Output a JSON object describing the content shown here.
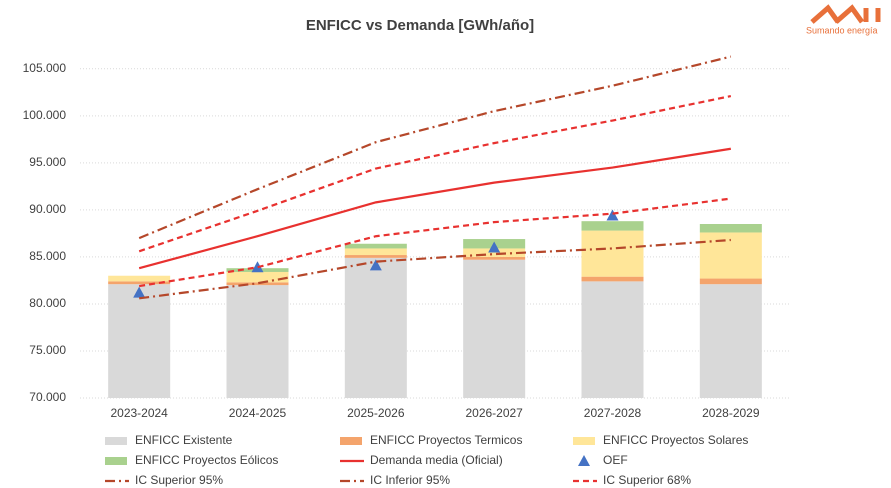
{
  "chart_data": {
    "type": "bar",
    "title": "ENFICC vs Demanda [GWh/año]",
    "logo_text": "Sumando energía",
    "categories": [
      "2023-2024",
      "2024-2025",
      "2025-2026",
      "2026-2027",
      "2027-2028",
      "2028-2029"
    ],
    "ylim": [
      70000,
      107000
    ],
    "yticks": [
      {
        "value": 70000,
        "label": "70.000"
      },
      {
        "value": 75000,
        "label": "75.000"
      },
      {
        "value": 80000,
        "label": "80.000"
      },
      {
        "value": 85000,
        "label": "85.000"
      },
      {
        "value": 90000,
        "label": "90.000"
      },
      {
        "value": 95000,
        "label": "95.000"
      },
      {
        "value": 100000,
        "label": "100.000"
      },
      {
        "value": 105000,
        "label": "105.000"
      }
    ],
    "grid": true,
    "series": [
      {
        "name": "ENFICC Existente",
        "kind": "bar",
        "color": "#d9d9d9",
        "values": [
          82100,
          82000,
          84900,
          84700,
          82400,
          82100
        ]
      },
      {
        "name": "ENFICC Proyectos Termicos",
        "kind": "bar",
        "color": "#f4a46c",
        "values": [
          300,
          300,
          300,
          300,
          500,
          600
        ]
      },
      {
        "name": "ENFICC Proyectos Solares",
        "kind": "bar",
        "color": "#ffe699",
        "values": [
          600,
          1100,
          700,
          900,
          4900,
          4900
        ]
      },
      {
        "name": "ENFICC Proyectos Eólicos",
        "kind": "bar",
        "color": "#a9d18e",
        "values": [
          0,
          400,
          500,
          1000,
          1000,
          900
        ]
      },
      {
        "name": "Demanda media (Oficial)",
        "kind": "line",
        "dash": "solid",
        "color": "#e8312f",
        "values": [
          83800,
          87200,
          90800,
          92900,
          94500,
          96500
        ]
      },
      {
        "name": "OEF",
        "kind": "marker",
        "color": "#4472c4",
        "values": [
          81200,
          83900,
          84100,
          86000,
          89400,
          null
        ]
      },
      {
        "name": "IC Superior 95%",
        "kind": "line",
        "dash": "dashdot",
        "color": "#b5472a",
        "values": [
          87000,
          92200,
          97200,
          100500,
          103200,
          106300
        ]
      },
      {
        "name": "IC Inferior 95%",
        "kind": "line",
        "dash": "dashdot",
        "color": "#b5472a",
        "values": [
          80600,
          82200,
          84500,
          85300,
          85900,
          86800
        ]
      },
      {
        "name": "IC Superior 68%",
        "kind": "line",
        "dash": "dash",
        "color": "#e8312f",
        "values": [
          85600,
          89900,
          94400,
          97100,
          99500,
          102100
        ]
      },
      {
        "name": null,
        "kind": "line",
        "dash": "dash",
        "color": "#e8312f",
        "values": [
          81900,
          83900,
          87200,
          88700,
          89600,
          91200
        ]
      }
    ]
  }
}
